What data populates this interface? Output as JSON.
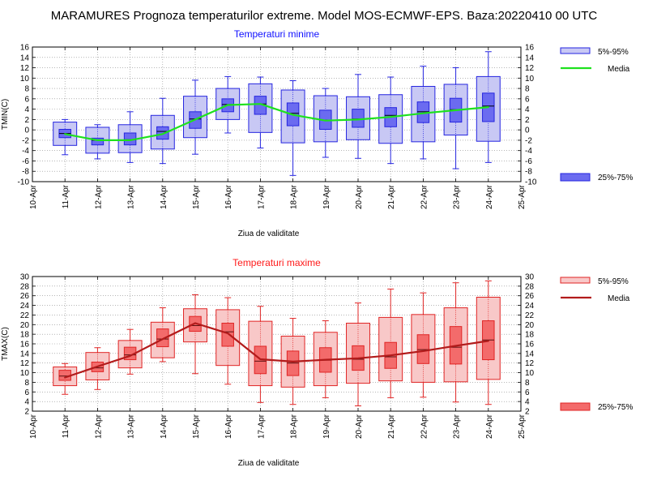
{
  "page_title": "MARAMURES  Prognoza temperaturilor extreme.  Model MOS-ECMWF-EPS. Baza:20220410 00 UTC",
  "chart_data": [
    {
      "type": "box",
      "id": "tmin",
      "title": "Temperaturi minime",
      "title_color": "#1010ff",
      "ylabel": "TMIN(C)",
      "xlabel": "Ziua de validitate",
      "ylim": [
        -10,
        16
      ],
      "yticks": [
        -10,
        -8,
        -6,
        -4,
        -2,
        0,
        2,
        4,
        6,
        8,
        10,
        12,
        14,
        16
      ],
      "x_tick_labels": [
        "10-Apr",
        "11-Apr",
        "12-Apr",
        "13-Apr",
        "14-Apr",
        "15-Apr",
        "16-Apr",
        "17-Apr",
        "18-Apr",
        "19-Apr",
        "20-Apr",
        "21-Apr",
        "22-Apr",
        "23-Apr",
        "24-Apr",
        "25-Apr"
      ],
      "categories": [
        "11-Apr",
        "12-Apr",
        "13-Apr",
        "14-Apr",
        "15-Apr",
        "16-Apr",
        "17-Apr",
        "18-Apr",
        "19-Apr",
        "20-Apr",
        "21-Apr",
        "22-Apr",
        "23-Apr",
        "24-Apr"
      ],
      "min": [
        -4.8,
        -5.6,
        -6.3,
        -6.5,
        -4.7,
        -0.6,
        -3.5,
        -8.8,
        -5.3,
        -5.5,
        -6.5,
        -5.6,
        -7.5,
        -6.3
      ],
      "p5": [
        -3.0,
        -4.5,
        -4.4,
        -3.7,
        -1.5,
        2.0,
        -0.5,
        -2.5,
        -2.3,
        -1.9,
        -2.6,
        -2.3,
        -1.0,
        -2.2
      ],
      "p25": [
        -1.5,
        -2.9,
        -2.9,
        -1.8,
        0.3,
        3.5,
        3.0,
        0.8,
        0.1,
        0.5,
        0.6,
        1.4,
        1.5,
        1.6
      ],
      "median": [
        -0.7,
        -2.0,
        -1.9,
        -0.3,
        2.1,
        4.9,
        5.0,
        3.2,
        1.9,
        2.1,
        2.8,
        3.5,
        3.9,
        4.6
      ],
      "p75": [
        0.1,
        -1.6,
        -0.6,
        0.6,
        3.5,
        6.0,
        6.5,
        5.2,
        3.8,
        4.0,
        4.3,
        5.4,
        6.1,
        7.1
      ],
      "p95": [
        1.5,
        0.5,
        1.0,
        2.8,
        6.5,
        8.0,
        8.9,
        7.7,
        6.6,
        6.4,
        6.8,
        8.4,
        8.8,
        10.3
      ],
      "max": [
        2.0,
        1.0,
        3.5,
        6.1,
        9.6,
        10.3,
        10.2,
        9.5,
        8.0,
        10.7,
        10.2,
        12.3,
        12.0,
        15.1
      ],
      "media": [
        -0.8,
        -2.0,
        -2.0,
        -0.8,
        2.0,
        4.8,
        5.0,
        2.9,
        1.8,
        2.0,
        2.5,
        3.2,
        3.8,
        4.4
      ],
      "colors": {
        "outer_fill": "#c8c8f4",
        "inner_fill": "#6b6bf0",
        "edge": "#2525e0",
        "media": "#1ee11e",
        "median": "#000000"
      },
      "legend": {
        "outer": "5%-95%",
        "median": "Media",
        "inner": "25%-75%"
      }
    },
    {
      "type": "box",
      "id": "tmax",
      "title": "Temperaturi maxime",
      "title_color": "#ff1a1a",
      "ylabel": "TMAX(C)",
      "xlabel": "Ziua de validitate",
      "ylim": [
        2,
        30
      ],
      "yticks": [
        2,
        4,
        6,
        8,
        10,
        12,
        14,
        16,
        18,
        20,
        22,
        24,
        26,
        28,
        30
      ],
      "x_tick_labels": [
        "10-Apr",
        "11-Apr",
        "12-Apr",
        "13-Apr",
        "14-Apr",
        "15-Apr",
        "16-Apr",
        "17-Apr",
        "18-Apr",
        "19-Apr",
        "20-Apr",
        "21-Apr",
        "22-Apr",
        "23-Apr",
        "24-Apr",
        "25-Apr"
      ],
      "categories": [
        "11-Apr",
        "12-Apr",
        "13-Apr",
        "14-Apr",
        "15-Apr",
        "16-Apr",
        "17-Apr",
        "18-Apr",
        "19-Apr",
        "20-Apr",
        "21-Apr",
        "22-Apr",
        "23-Apr",
        "24-Apr"
      ],
      "min": [
        5.5,
        6.5,
        9.7,
        12.3,
        9.8,
        7.6,
        3.8,
        3.4,
        4.8,
        3.1,
        4.8,
        4.9,
        3.9,
        3.4
      ],
      "p5": [
        7.3,
        8.5,
        11.0,
        13.1,
        16.4,
        11.5,
        7.3,
        7.0,
        7.3,
        7.8,
        8.3,
        8.0,
        8.1,
        8.6
      ],
      "p25": [
        8.4,
        10.2,
        12.7,
        15.4,
        18.6,
        15.5,
        9.8,
        9.4,
        10.1,
        10.5,
        10.9,
        11.9,
        11.8,
        12.7
      ],
      "median": [
        9.3,
        11.0,
        13.7,
        17.0,
        19.8,
        18.5,
        12.4,
        12.0,
        12.6,
        12.8,
        13.3,
        14.8,
        15.3,
        16.8
      ],
      "p75": [
        10.5,
        12.2,
        15.3,
        19.1,
        21.7,
        20.3,
        15.5,
        14.5,
        15.2,
        15.6,
        16.3,
        17.9,
        19.6,
        20.8
      ],
      "p95": [
        11.2,
        14.2,
        16.7,
        20.5,
        23.3,
        23.1,
        20.7,
        17.6,
        18.4,
        20.3,
        21.5,
        22.1,
        23.5,
        25.7
      ],
      "max": [
        11.9,
        15.2,
        19.0,
        23.5,
        26.2,
        25.6,
        23.8,
        21.3,
        20.8,
        24.5,
        27.4,
        26.6,
        28.7,
        29.1
      ],
      "media": [
        9.0,
        11.3,
        13.5,
        17.0,
        20.3,
        18.2,
        12.8,
        12.3,
        12.7,
        13.0,
        13.6,
        14.5,
        15.6,
        16.6
      ],
      "colors": {
        "outer_fill": "#f8c8c8",
        "inner_fill": "#f36b6b",
        "edge": "#e02525",
        "media": "#b21b1b",
        "median": "#5a1010"
      },
      "legend": {
        "outer": "5%-95%",
        "median": "Media",
        "inner": "25%-75%"
      }
    }
  ]
}
